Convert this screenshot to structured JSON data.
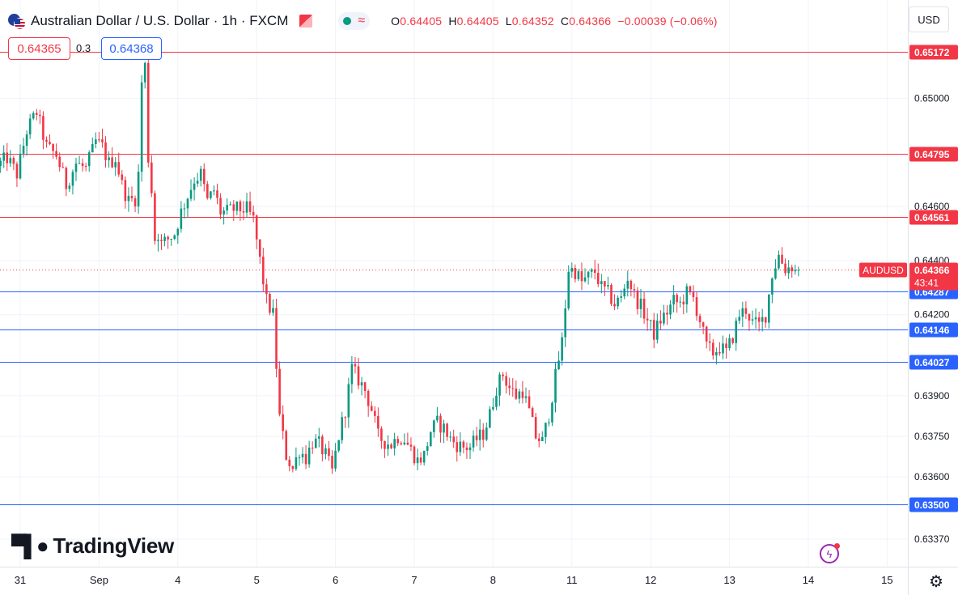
{
  "header": {
    "symbol_title": "Australian Dollar / U.S. Dollar · 1h · FXCM",
    "ohlc": {
      "open_label": "O",
      "open": "0.64405",
      "high_label": "H",
      "high": "0.64405",
      "low_label": "L",
      "low": "0.64352",
      "close_label": "C",
      "close": "0.64366",
      "change": "−0.00039 (−0.06%)"
    }
  },
  "trade": {
    "sell_price": "0.64365",
    "spread": "0.3",
    "buy_price": "0.64368"
  },
  "currency_button": "USD",
  "branding": {
    "logo_text": "TradingView"
  },
  "icons": {
    "flag": "aud-usd-flag-icon",
    "alert": "red-flag-icon",
    "market_status": "market-open-dot-icon",
    "logo": "tradingview-logo-icon",
    "bolt": "lightning-icon",
    "settings": "gear-icon"
  },
  "colors": {
    "up": "#089981",
    "down": "#f23645",
    "resistance": "#f23645",
    "support": "#2962ff",
    "last_price": "#f23645",
    "grid": "#f0f3fa"
  },
  "chart_data": {
    "type": "candlestick",
    "title": "Australian Dollar / U.S. Dollar · 1h · FXCM",
    "ylim": [
      0.6328,
      0.6534
    ],
    "y_ticks": [
      "0.65000",
      "0.64600",
      "0.64400",
      "0.64200",
      "0.63900",
      "0.63750",
      "0.63600",
      "0.63370"
    ],
    "x_ticks": [
      {
        "label": "31",
        "t": 0
      },
      {
        "label": "Sep",
        "t": 24
      },
      {
        "label": "4",
        "t": 48
      },
      {
        "label": "5",
        "t": 72
      },
      {
        "label": "6",
        "t": 96
      },
      {
        "label": "7",
        "t": 120
      },
      {
        "label": "8",
        "t": 144
      },
      {
        "label": "11",
        "t": 168
      },
      {
        "label": "12",
        "t": 192
      },
      {
        "label": "13",
        "t": 216
      },
      {
        "label": "14",
        "t": 240
      },
      {
        "label": "15",
        "t": 264
      }
    ],
    "levels": [
      {
        "value": 0.65172,
        "label": "0.65172",
        "kind": "resistance"
      },
      {
        "value": 0.64795,
        "label": "0.64795",
        "kind": "resistance"
      },
      {
        "value": 0.64561,
        "label": "0.64561",
        "kind": "resistance"
      },
      {
        "value": 0.64287,
        "label": "0.64287",
        "kind": "support"
      },
      {
        "value": 0.64146,
        "label": "0.64146",
        "kind": "support"
      },
      {
        "value": 0.64027,
        "label": "0.64027",
        "kind": "support"
      },
      {
        "value": 0.635,
        "label": "0.63500",
        "kind": "support"
      }
    ],
    "last_price": {
      "symbol": "AUDUSD",
      "value": 0.64366,
      "label": "0.64366",
      "countdown": "43:41"
    },
    "anchors": [
      [
        -6,
        0.6475
      ],
      [
        -3,
        0.6478
      ],
      [
        0,
        0.6472
      ],
      [
        3,
        0.6488
      ],
      [
        6,
        0.6495
      ],
      [
        9,
        0.6482
      ],
      [
        12,
        0.6479
      ],
      [
        15,
        0.6468
      ],
      [
        18,
        0.6476
      ],
      [
        21,
        0.6474
      ],
      [
        24,
        0.6484
      ],
      [
        26,
        0.6482
      ],
      [
        28,
        0.6476
      ],
      [
        30,
        0.6478
      ],
      [
        32,
        0.6468
      ],
      [
        34,
        0.6462
      ],
      [
        36,
        0.6463
      ],
      [
        37,
        0.6472
      ],
      [
        38,
        0.6506
      ],
      [
        39,
        0.6512
      ],
      [
        40,
        0.6478
      ],
      [
        41,
        0.6466
      ],
      [
        42,
        0.6448
      ],
      [
        43,
        0.645
      ],
      [
        44,
        0.6446
      ],
      [
        46,
        0.6448
      ],
      [
        48,
        0.645
      ],
      [
        50,
        0.6458
      ],
      [
        52,
        0.6464
      ],
      [
        54,
        0.647
      ],
      [
        56,
        0.6472
      ],
      [
        58,
        0.6462
      ],
      [
        60,
        0.6466
      ],
      [
        62,
        0.6458
      ],
      [
        64,
        0.6458
      ],
      [
        66,
        0.6459
      ],
      [
        68,
        0.6459
      ],
      [
        70,
        0.6459
      ],
      [
        72,
        0.6455
      ],
      [
        74,
        0.644
      ],
      [
        76,
        0.6425
      ],
      [
        78,
        0.642
      ],
      [
        80,
        0.6382
      ],
      [
        82,
        0.6368
      ],
      [
        84,
        0.6363
      ],
      [
        86,
        0.637
      ],
      [
        88,
        0.6367
      ],
      [
        90,
        0.6373
      ],
      [
        92,
        0.6372
      ],
      [
        94,
        0.6368
      ],
      [
        96,
        0.6362
      ],
      [
        98,
        0.6375
      ],
      [
        100,
        0.6385
      ],
      [
        102,
        0.64
      ],
      [
        104,
        0.6396
      ],
      [
        106,
        0.6392
      ],
      [
        108,
        0.6385
      ],
      [
        110,
        0.6375
      ],
      [
        112,
        0.6373
      ],
      [
        114,
        0.6372
      ],
      [
        116,
        0.6375
      ],
      [
        118,
        0.6374
      ],
      [
        120,
        0.637
      ],
      [
        122,
        0.6366
      ],
      [
        124,
        0.6368
      ],
      [
        126,
        0.6377
      ],
      [
        128,
        0.638
      ],
      [
        130,
        0.6378
      ],
      [
        132,
        0.6374
      ],
      [
        134,
        0.6372
      ],
      [
        136,
        0.6371
      ],
      [
        138,
        0.6371
      ],
      [
        140,
        0.6374
      ],
      [
        142,
        0.6376
      ],
      [
        144,
        0.6383
      ],
      [
        146,
        0.6393
      ],
      [
        148,
        0.6398
      ],
      [
        150,
        0.6393
      ],
      [
        152,
        0.639
      ],
      [
        154,
        0.6392
      ],
      [
        156,
        0.6384
      ],
      [
        158,
        0.6375
      ],
      [
        160,
        0.6373
      ],
      [
        162,
        0.6383
      ],
      [
        164,
        0.6397
      ],
      [
        166,
        0.641
      ],
      [
        168,
        0.6437
      ],
      [
        170,
        0.6436
      ],
      [
        172,
        0.6432
      ],
      [
        174,
        0.6434
      ],
      [
        176,
        0.6436
      ],
      [
        178,
        0.643
      ],
      [
        180,
        0.6428
      ],
      [
        182,
        0.6424
      ],
      [
        184,
        0.6426
      ],
      [
        186,
        0.6434
      ],
      [
        188,
        0.6427
      ],
      [
        190,
        0.6423
      ],
      [
        192,
        0.6418
      ],
      [
        194,
        0.6413
      ],
      [
        196,
        0.6418
      ],
      [
        198,
        0.6421
      ],
      [
        200,
        0.6425
      ],
      [
        202,
        0.6424
      ],
      [
        204,
        0.6428
      ],
      [
        206,
        0.6426
      ],
      [
        208,
        0.6418
      ],
      [
        210,
        0.6408
      ],
      [
        212,
        0.6406
      ],
      [
        214,
        0.6408
      ],
      [
        216,
        0.6406
      ],
      [
        218,
        0.6412
      ],
      [
        220,
        0.642
      ],
      [
        222,
        0.6422
      ],
      [
        224,
        0.6417
      ],
      [
        226,
        0.6416
      ],
      [
        228,
        0.642
      ],
      [
        230,
        0.6435
      ],
      [
        232,
        0.6442
      ],
      [
        234,
        0.6437
      ],
      [
        236,
        0.6438
      ],
      [
        237,
        0.6436
      ]
    ]
  }
}
